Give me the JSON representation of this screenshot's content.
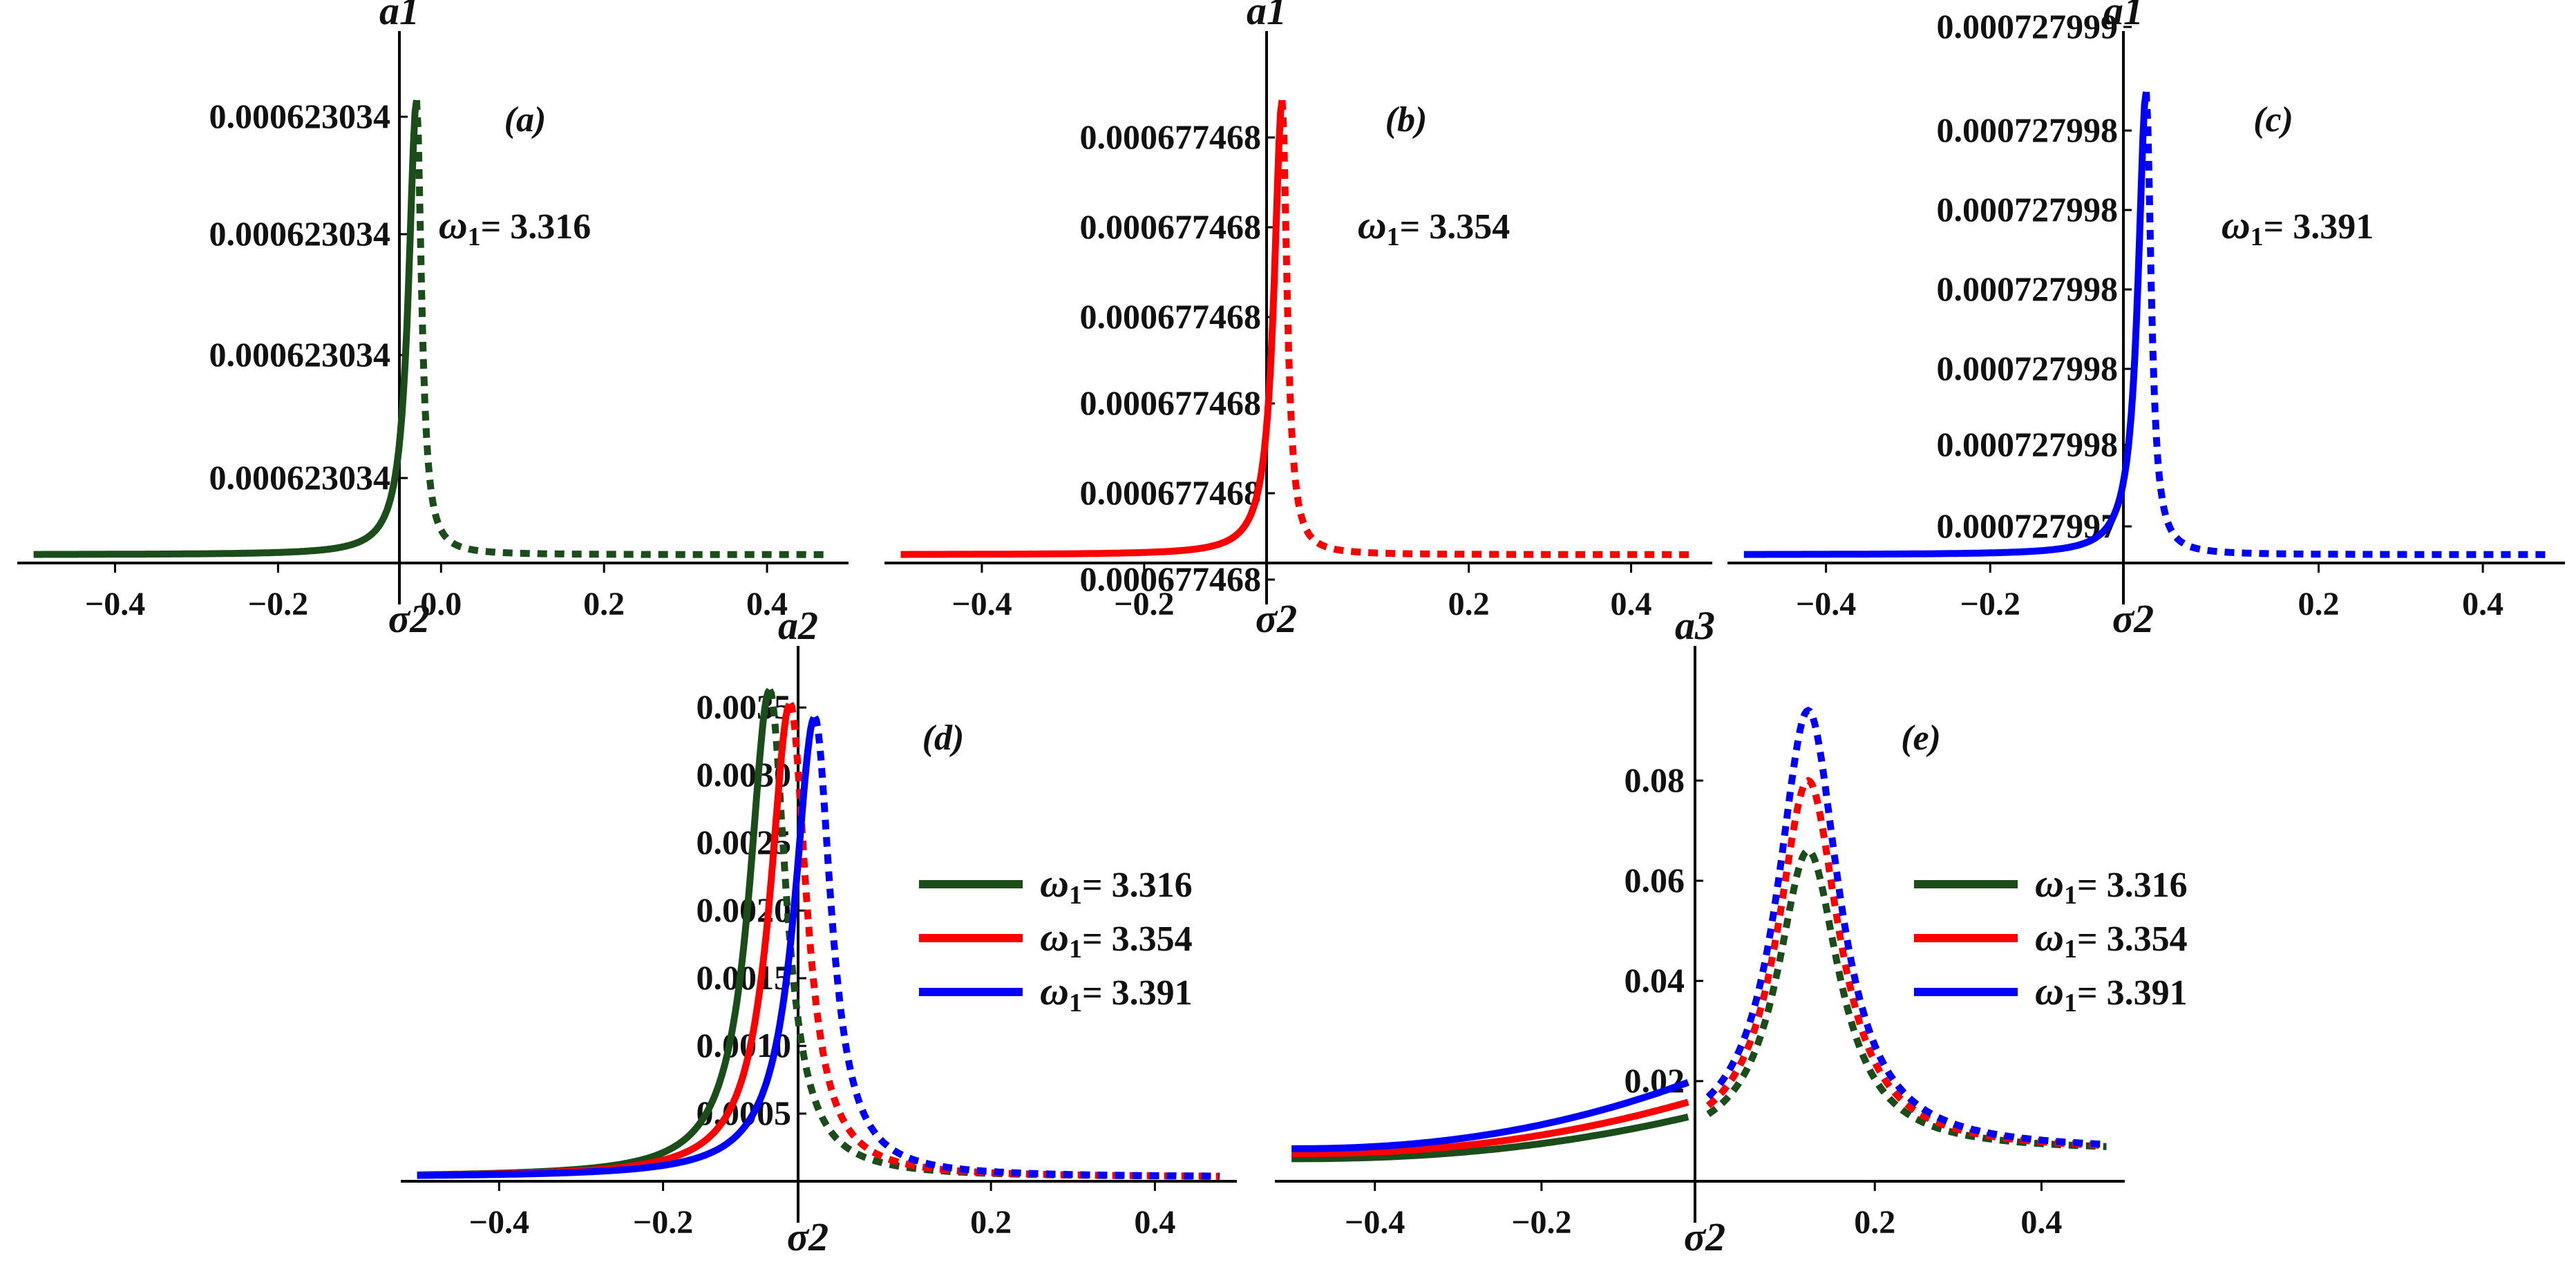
{
  "chart_data": [
    {
      "id": "a",
      "type": "line",
      "panel_label": "(a)",
      "xlabel": "σ2",
      "ylabel": "a1",
      "xlim": [
        -0.52,
        0.5
      ],
      "xticks": [
        "−0.4",
        "−0.2",
        "0.0",
        "0.2",
        "0.4"
      ],
      "yticks": [
        "0.000623034",
        "0.000623034",
        "0.000623034",
        "0.000623034"
      ],
      "annotation": {
        "symbol": "ω",
        "sub": "1",
        "text": "= 3.316"
      },
      "series": [
        {
          "name": "ω1 = 3.316",
          "color": "#1a4d1a",
          "peak_x": -0.03
        }
      ]
    },
    {
      "id": "b",
      "type": "line",
      "panel_label": "(b)",
      "xlabel": "σ2",
      "ylabel": "a1",
      "xlim": [
        -0.52,
        0.5
      ],
      "xticks": [
        "−0.4",
        "−0.2",
        "0.2",
        "0.4"
      ],
      "yticks": [
        "0.000677468",
        "0.000677468",
        "0.000677468",
        "0.000677468",
        "0.000677468",
        "0.000677468"
      ],
      "annotation": {
        "symbol": "ω",
        "sub": "1",
        "text": "= 3.354"
      },
      "series": [
        {
          "name": "ω1 = 3.354",
          "color": "#ff0000",
          "peak_x": -0.03
        }
      ]
    },
    {
      "id": "c",
      "type": "line",
      "panel_label": "(c)",
      "xlabel": "σ2",
      "ylabel": "a1",
      "xlim": [
        -0.52,
        0.5
      ],
      "xticks": [
        "−0.4",
        "−0.2",
        "0.2",
        "0.4"
      ],
      "yticks": [
        "0.000727999",
        "0.000727998",
        "0.000727998",
        "0.000727998",
        "0.000727998",
        "0.000727998",
        "0.000727997"
      ],
      "annotation": {
        "symbol": "ω",
        "sub": "1",
        "text": "= 3.391"
      },
      "series": [
        {
          "name": "ω1 = 3.391",
          "color": "#0000ff",
          "peak_x": -0.01
        }
      ]
    },
    {
      "id": "d",
      "type": "line",
      "panel_label": "(d)",
      "xlabel": "σ2",
      "ylabel": "a2",
      "xlim": [
        -0.52,
        0.5
      ],
      "ylim": [
        0,
        0.0037
      ],
      "xticks": [
        "−0.4",
        "−0.2",
        "0.2",
        "0.4"
      ],
      "yticks": [
        {
          "value": 0.0035,
          "label": "0.0035"
        },
        {
          "value": 0.003,
          "label": "0.0030"
        },
        {
          "value": 0.0025,
          "label": "0.0025"
        },
        {
          "value": 0.002,
          "label": "0.0020"
        },
        {
          "value": 0.0015,
          "label": "0.0015"
        },
        {
          "value": 0.001,
          "label": "0.0010"
        },
        {
          "value": 0.0005,
          "label": "0.0005"
        }
      ],
      "legend": "right",
      "series": [
        {
          "name": "ω1 = 3.316",
          "sub": "1",
          "text": "= 3.316",
          "color": "#1a4d1a",
          "peak_x": -0.07,
          "peak_y": 0.0036
        },
        {
          "name": "ω1 = 3.354",
          "sub": "1",
          "text": "= 3.354",
          "color": "#ff0000",
          "peak_x": -0.045,
          "peak_y": 0.0035
        },
        {
          "name": "ω1 = 3.391",
          "sub": "1",
          "text": "= 3.391",
          "color": "#0000ff",
          "peak_x": -0.015,
          "peak_y": 0.0034
        }
      ]
    },
    {
      "id": "e",
      "type": "line",
      "panel_label": "(e)",
      "xlabel": "σ2",
      "ylabel": "a3",
      "xlim": [
        -0.52,
        0.5
      ],
      "ylim": [
        0,
        0.1
      ],
      "xticks": [
        "−0.4",
        "−0.2",
        "0.2",
        "0.4"
      ],
      "yticks": [
        {
          "value": 0.08,
          "label": "0.08"
        },
        {
          "value": 0.06,
          "label": "0.06"
        },
        {
          "value": 0.04,
          "label": "0.04"
        },
        {
          "value": 0.02,
          "label": "0.02"
        }
      ],
      "legend": "right",
      "series": [
        {
          "name": "ω1 = 3.316",
          "sub": "1",
          "text": "= 3.316",
          "color": "#1a4d1a",
          "peak_x": 0.12,
          "peak_y": 0.066,
          "start_y": 0.0045,
          "branch_y": 0.013
        },
        {
          "name": "ω1 = 3.354",
          "sub": "1",
          "text": "= 3.354",
          "color": "#ff0000",
          "peak_x": 0.12,
          "peak_y": 0.08,
          "start_y": 0.0055,
          "branch_y": 0.016
        },
        {
          "name": "ω1 = 3.391",
          "sub": "1",
          "text": "= 3.391",
          "color": "#0000ff",
          "peak_x": 0.12,
          "peak_y": 0.094,
          "start_y": 0.0065,
          "branch_y": 0.02
        }
      ]
    }
  ]
}
